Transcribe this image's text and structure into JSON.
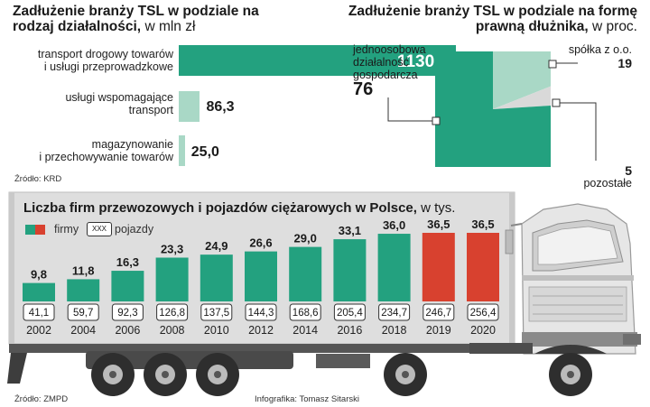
{
  "colors": {
    "teal": "#23a17f",
    "teal_light": "#a9d8c6",
    "red": "#d8412f",
    "grey_pie": "#d9d9d9",
    "truck_body": "#dcdcdc"
  },
  "chart_data": [
    {
      "type": "bar",
      "orientation": "horizontal",
      "title": "Zadłużenie branży TSL w podziale na rodzaj działalności,",
      "unit": "w mln zł",
      "categories": [
        "transport drogowy towarów i usługi przeprowadzkowe",
        "usługi wspomagające transport",
        "magazynowanie i przechowywanie towarów"
      ],
      "category_lines": [
        [
          "transport drogowy towarów",
          "i usługi przeprowadzkowe"
        ],
        [
          "usługi wspomagające",
          "transport"
        ],
        [
          "magazynowanie",
          "i przechowywanie towarów"
        ]
      ],
      "values": [
        1130.3,
        86.3,
        25.0
      ],
      "value_labels": [
        "1130,3",
        "86,3",
        "25,0"
      ],
      "source": "Źródło: KRD"
    },
    {
      "type": "pie",
      "title": "Zadłużenie branży TSL w podziale na formę prawną dłużnika,",
      "unit": "w proc.",
      "slices": [
        {
          "label": "jednoosobowa działalność gospodarcza",
          "label_lines": [
            "jednoosobowa",
            "działalność",
            "gospodarcza"
          ],
          "value": 76,
          "value_label": "76"
        },
        {
          "label": "spółka z o.o.",
          "value": 19,
          "value_label": "19"
        },
        {
          "label": "pozostałe",
          "value": 5,
          "value_label": "5"
        }
      ]
    },
    {
      "type": "bar",
      "title": "Liczba firm przewozowych i pojazdów ciężarowych w Polsce,",
      "unit": "w tys.",
      "legend": {
        "firms_label": "firmy",
        "vehicles_label": "pojazdy",
        "vehicles_box": "XXX"
      },
      "categories": [
        "2002",
        "2004",
        "2006",
        "2008",
        "2010",
        "2012",
        "2014",
        "2016",
        "2018",
        "2019",
        "2020"
      ],
      "series": [
        {
          "name": "firmy",
          "values": [
            9.8,
            11.8,
            16.3,
            23.3,
            24.9,
            26.6,
            29.0,
            33.1,
            36.0,
            36.5,
            36.5
          ],
          "labels": [
            "9,8",
            "11,8",
            "16,3",
            "23,3",
            "24,9",
            "26,6",
            "29,0",
            "33,1",
            "36,0",
            "36,5",
            "36,5"
          ]
        },
        {
          "name": "pojazdy",
          "values": [
            41.1,
            59.7,
            92.3,
            126.8,
            137.5,
            144.3,
            168.6,
            205.4,
            234.7,
            246.7,
            256.4
          ],
          "labels": [
            "41,1",
            "59,7",
            "92,3",
            "126,8",
            "137,5",
            "144,3",
            "168,6",
            "205,4",
            "234,7",
            "246,7",
            "256,4"
          ]
        }
      ],
      "highlighted_categories": [
        "2019",
        "2020"
      ],
      "source": "Źródło: ZMPD"
    }
  ],
  "credit": "Infografika: Tomasz Sitarski"
}
